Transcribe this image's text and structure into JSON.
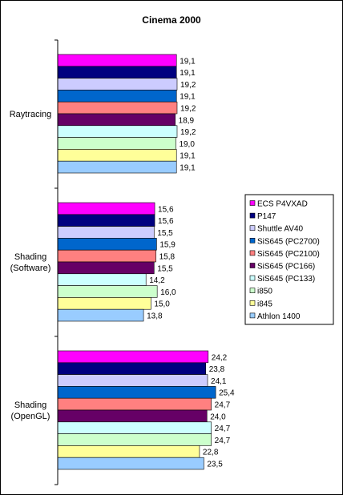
{
  "chart_data": {
    "type": "bar",
    "orientation": "horizontal",
    "title": "Cinema 2000",
    "categories": [
      "Raytracing",
      "Shading (Software)",
      "Shading (OpenGL)"
    ],
    "series": [
      {
        "name": "ECS P4VXAD",
        "color": "#ff00ff",
        "values": [
          19.1,
          15.6,
          24.2
        ],
        "labels": [
          "19,1",
          "15,6",
          "24,2"
        ]
      },
      {
        "name": "P147",
        "color": "#000080",
        "values": [
          19.1,
          15.6,
          23.8
        ],
        "labels": [
          "19,1",
          "15,6",
          "23,8"
        ]
      },
      {
        "name": "Shuttle AV40",
        "color": "#ccccff",
        "values": [
          19.2,
          15.5,
          24.1
        ],
        "labels": [
          "19,2",
          "15,5",
          "24,1"
        ]
      },
      {
        "name": "SiS645 (PC2700)",
        "color": "#0066cc",
        "values": [
          19.1,
          15.9,
          25.4
        ],
        "labels": [
          "19,1",
          "15,9",
          "25,4"
        ]
      },
      {
        "name": "SiS645 (PC2100)",
        "color": "#ff8080",
        "values": [
          19.2,
          15.8,
          24.7
        ],
        "labels": [
          "19,2",
          "15,8",
          "24,7"
        ]
      },
      {
        "name": "SiS645 (PC166)",
        "color": "#660066",
        "values": [
          18.9,
          15.5,
          24.0
        ],
        "labels": [
          "18,9",
          "15,5",
          "24,0"
        ]
      },
      {
        "name": "SiS645 (PC133)",
        "color": "#ccffff",
        "values": [
          19.2,
          14.2,
          24.7
        ],
        "labels": [
          "19,2",
          "14,2",
          "24,7"
        ]
      },
      {
        "name": "i850",
        "color": "#ccffcc",
        "values": [
          19.0,
          16.0,
          24.7
        ],
        "labels": [
          "19,0",
          "16,0",
          "24,7"
        ]
      },
      {
        "name": "i845",
        "color": "#ffff99",
        "values": [
          19.1,
          15.0,
          22.8
        ],
        "labels": [
          "19,1",
          "15,0",
          "22,8"
        ]
      },
      {
        "name": "Athlon 1400",
        "color": "#99ccff",
        "values": [
          19.1,
          13.8,
          23.5
        ],
        "labels": [
          "19,1",
          "13,8",
          "23,5"
        ]
      }
    ],
    "legend_position": "right",
    "grid": false
  }
}
